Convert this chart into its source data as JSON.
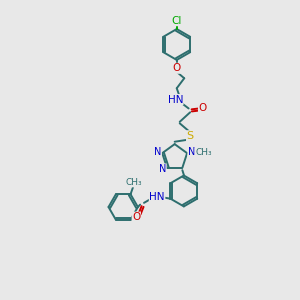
{
  "background_color": "#e8e8e8",
  "atom_colors": {
    "C": "#2d6e6e",
    "N": "#0000cc",
    "O": "#cc0000",
    "S": "#ccaa00",
    "Cl": "#00aa00",
    "bond": "#2d6e6e"
  },
  "bond_width": 1.4,
  "figsize": [
    3.0,
    3.0
  ],
  "dpi": 100,
  "xlim": [
    0,
    10
  ],
  "ylim": [
    0,
    10
  ]
}
